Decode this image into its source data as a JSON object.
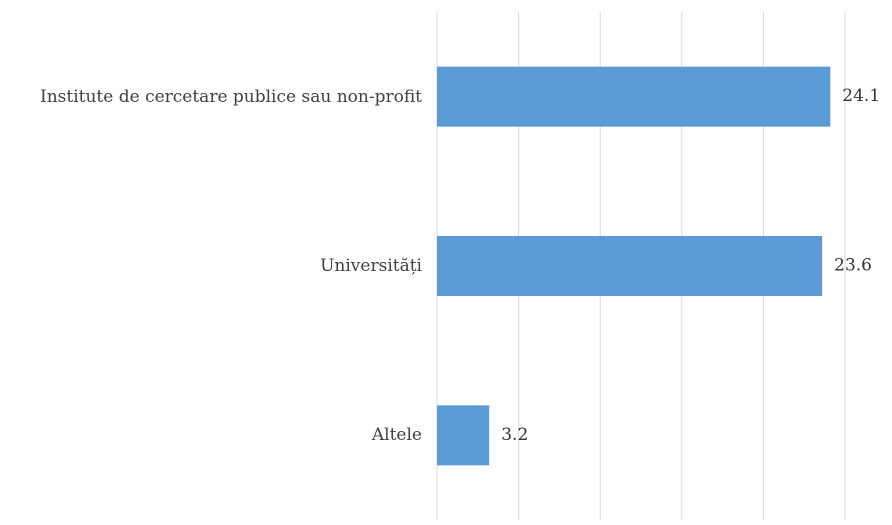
{
  "chart_data": {
    "type": "bar",
    "orientation": "horizontal",
    "categories": [
      "Institute de cercetare publice sau non-profit",
      "Universități",
      "Altele"
    ],
    "values": [
      24.1,
      23.6,
      3.2
    ],
    "color": "#5b9bd5",
    "xlim": [
      0,
      25
    ],
    "xticks": [
      0,
      5,
      10,
      15,
      20,
      25
    ],
    "grid": true
  }
}
